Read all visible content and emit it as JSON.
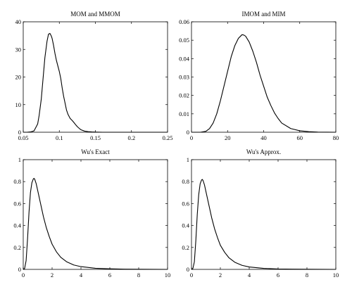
{
  "chart_data": [
    {
      "type": "line",
      "title": "MOM and MMOM",
      "xlim": [
        0.05,
        0.25
      ],
      "ylim": [
        0,
        40
      ],
      "xticks": [
        "0.05",
        "0.1",
        "0.15",
        "0.2",
        "0.25"
      ],
      "yticks": [
        "0",
        "10",
        "20",
        "30",
        "40"
      ],
      "grid": false,
      "series": [
        {
          "x": [
            0.05,
            0.055,
            0.06,
            0.065,
            0.07,
            0.072,
            0.075,
            0.078,
            0.08,
            0.083,
            0.085,
            0.087,
            0.089,
            0.09,
            0.092,
            0.094,
            0.096,
            0.098,
            0.1,
            0.102,
            0.104,
            0.106,
            0.108,
            0.11,
            0.112,
            0.115,
            0.118,
            0.12,
            0.123,
            0.125,
            0.128,
            0.13,
            0.135,
            0.14,
            0.145,
            0.15,
            0.16,
            0.17,
            0.2,
            0.25
          ],
          "y": [
            0,
            0,
            0.1,
            0.5,
            3,
            6,
            12,
            21,
            27,
            33,
            35.5,
            35.8,
            34.8,
            34,
            31.5,
            28.5,
            26,
            24,
            22,
            19.5,
            16,
            13,
            10.5,
            8,
            6.5,
            5,
            4.2,
            3.6,
            2.6,
            2,
            1.3,
            0.9,
            0.4,
            0.2,
            0.1,
            0.05,
            0,
            0,
            0,
            0
          ]
        }
      ]
    },
    {
      "type": "line",
      "title": "IMOM and MIM",
      "xlim": [
        0,
        80
      ],
      "ylim": [
        0,
        0.06
      ],
      "xticks": [
        "0",
        "20",
        "40",
        "60",
        "80"
      ],
      "yticks": [
        "0",
        "0.01",
        "0.02",
        "0.03",
        "0.04",
        "0.05",
        "0.06"
      ],
      "grid": false,
      "series": [
        {
          "x": [
            0,
            5,
            8,
            10,
            12,
            14,
            16,
            18,
            20,
            22,
            24,
            26,
            27,
            28,
            29,
            30,
            32,
            34,
            36,
            38,
            40,
            42,
            44,
            46,
            48,
            50,
            55,
            60,
            65,
            70,
            80
          ],
          "y": [
            0,
            0,
            0.0005,
            0.002,
            0.005,
            0.01,
            0.017,
            0.025,
            0.033,
            0.041,
            0.047,
            0.051,
            0.052,
            0.053,
            0.0528,
            0.0522,
            0.049,
            0.044,
            0.038,
            0.031,
            0.025,
            0.019,
            0.0145,
            0.0105,
            0.0075,
            0.005,
            0.002,
            0.0008,
            0.0003,
            0.0001,
            0
          ]
        }
      ]
    },
    {
      "type": "line",
      "title": "Wu's Exact",
      "xlim": [
        0,
        10
      ],
      "ylim": [
        0,
        1
      ],
      "xticks": [
        "0",
        "2",
        "4",
        "6",
        "8",
        "10"
      ],
      "yticks": [
        "0",
        "0.2",
        "0.4",
        "0.6",
        "0.8",
        "1"
      ],
      "grid": false,
      "series": [
        {
          "x": [
            0,
            0.1,
            0.2,
            0.3,
            0.4,
            0.5,
            0.6,
            0.7,
            0.75,
            0.8,
            0.9,
            1.0,
            1.2,
            1.4,
            1.6,
            1.8,
            2.0,
            2.3,
            2.6,
            3.0,
            3.5,
            4.0,
            5.0,
            6.0,
            7.0,
            8.0,
            10.0
          ],
          "y": [
            0,
            0.01,
            0.08,
            0.28,
            0.52,
            0.7,
            0.79,
            0.825,
            0.83,
            0.82,
            0.78,
            0.72,
            0.6,
            0.48,
            0.38,
            0.3,
            0.23,
            0.16,
            0.11,
            0.07,
            0.04,
            0.025,
            0.01,
            0.005,
            0.002,
            0.001,
            0
          ]
        }
      ]
    },
    {
      "type": "line",
      "title": "Wu's Approx.",
      "xlim": [
        0,
        10
      ],
      "ylim": [
        0,
        1
      ],
      "xticks": [
        "0",
        "2",
        "4",
        "6",
        "8",
        "10"
      ],
      "yticks": [
        "0",
        "0.2",
        "0.4",
        "0.6",
        "0.8",
        "1"
      ],
      "grid": false,
      "series": [
        {
          "x": [
            0,
            0.1,
            0.2,
            0.3,
            0.4,
            0.5,
            0.6,
            0.7,
            0.75,
            0.8,
            0.9,
            1.0,
            1.2,
            1.4,
            1.6,
            1.8,
            2.0,
            2.3,
            2.6,
            3.0,
            3.5,
            4.0,
            5.0,
            6.0,
            7.0,
            8.0,
            10.0
          ],
          "y": [
            0,
            0.01,
            0.07,
            0.26,
            0.5,
            0.68,
            0.78,
            0.815,
            0.82,
            0.81,
            0.77,
            0.71,
            0.59,
            0.47,
            0.37,
            0.29,
            0.22,
            0.155,
            0.105,
            0.065,
            0.037,
            0.022,
            0.009,
            0.004,
            0.002,
            0.001,
            0
          ]
        }
      ]
    }
  ]
}
